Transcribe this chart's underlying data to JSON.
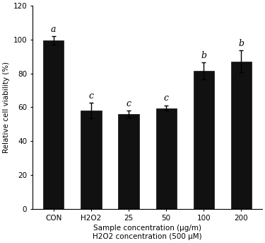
{
  "categories": [
    "CON",
    "H2O2",
    "25",
    "50",
    "100",
    "200"
  ],
  "values": [
    99.5,
    58.0,
    56.0,
    59.5,
    81.5,
    87.0
  ],
  "errors": [
    2.5,
    4.5,
    2.0,
    1.5,
    5.0,
    6.5
  ],
  "bar_color": "#111111",
  "letters": [
    "a",
    "c",
    "c",
    "c",
    "b",
    "b"
  ],
  "ylabel": "Relative cell viability (%)",
  "xlabel_line1": "Sample concentration (μg/m)",
  "xlabel_line2": "H2O2 concentration (500 μM)",
  "ylim": [
    0,
    120
  ],
  "yticks": [
    0,
    20,
    40,
    60,
    80,
    100,
    120
  ],
  "letter_fontsize": 9,
  "axis_label_fontsize": 7.5,
  "tick_fontsize": 7.5,
  "bar_width": 0.55,
  "background_color": "#ffffff",
  "edge_color": "#111111"
}
